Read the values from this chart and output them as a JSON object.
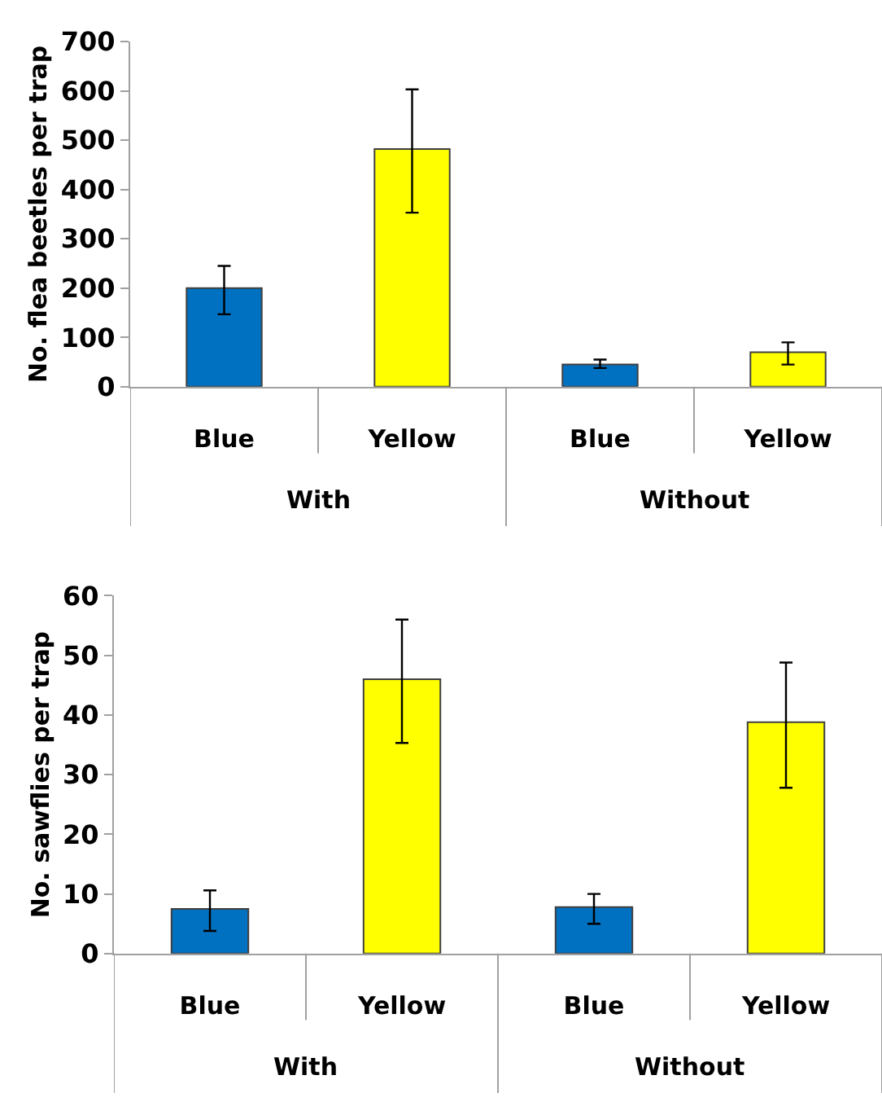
{
  "chart_data": [
    {
      "type": "bar",
      "ylabel": "No. flea beetles per trap",
      "categories": [
        "Blue",
        "Yellow",
        "Blue",
        "Yellow"
      ],
      "values": [
        200,
        482,
        45,
        70
      ],
      "colors": [
        "#0070c0",
        "#ffff00",
        "#0070c0",
        "#ffff00"
      ],
      "errors": [
        [
          147,
          245
        ],
        [
          353,
          603
        ],
        [
          38,
          55
        ],
        [
          45,
          90
        ]
      ],
      "annotations": [
        "With",
        "Without"
      ],
      "ylim": [
        0,
        700
      ],
      "yticks": [
        0,
        100,
        200,
        300,
        400,
        500,
        600,
        700
      ]
    },
    {
      "type": "bar",
      "ylabel": "No. sawflies per trap",
      "categories": [
        "Blue",
        "Yellow",
        "Blue",
        "Yellow"
      ],
      "values": [
        7.5,
        46,
        7.8,
        38.8
      ],
      "colors": [
        "#0070c0",
        "#ffff00",
        "#0070c0",
        "#ffff00"
      ],
      "errors": [
        [
          3.8,
          10.6
        ],
        [
          35.3,
          56
        ],
        [
          5,
          10
        ],
        [
          27.8,
          48.8
        ]
      ],
      "annotations": [
        "With",
        "Without"
      ],
      "ylim": [
        0,
        60
      ],
      "yticks": [
        0,
        10,
        20,
        30,
        40,
        50,
        60
      ]
    }
  ]
}
